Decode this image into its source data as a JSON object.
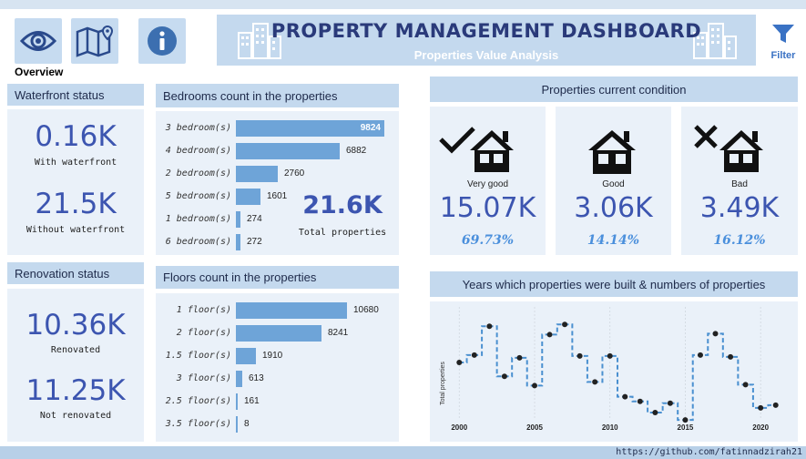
{
  "header": {
    "title": "PROPERTY MANAGEMENT DASHBOARD",
    "subtitle": "Properties Value Analysis",
    "overview_label": "Overview",
    "filter_label": "Filter"
  },
  "nav": [
    {
      "name": "eye-icon"
    },
    {
      "name": "map-icon"
    },
    {
      "name": "info-icon"
    }
  ],
  "waterfront": {
    "title": "Waterfront status",
    "with_value": "0.16K",
    "with_label": "With waterfront",
    "without_value": "21.5K",
    "without_label": "Without waterfront"
  },
  "renovation": {
    "title": "Renovation status",
    "renovated_value": "10.36K",
    "renovated_label": "Renovated",
    "not_value": "11.25K",
    "not_label": "Not renovated"
  },
  "bedrooms": {
    "title": "Bedrooms count in the properties",
    "total_value": "21.6K",
    "total_label": "Total properties",
    "items": [
      {
        "label": "3 bedroom(s)",
        "value": 9824
      },
      {
        "label": "4 bedroom(s)",
        "value": 6882
      },
      {
        "label": "2 bedroom(s)",
        "value": 2760
      },
      {
        "label": "5 bedroom(s)",
        "value": 1601
      },
      {
        "label": "1 bedroom(s)",
        "value": 274
      },
      {
        "label": "6 bedroom(s)",
        "value": 272
      }
    ]
  },
  "floors": {
    "title": "Floors count in the properties",
    "items": [
      {
        "label": "1 floor(s)",
        "value": 10680
      },
      {
        "label": "2 floor(s)",
        "value": 8241
      },
      {
        "label": "1.5 floor(s)",
        "value": 1910
      },
      {
        "label": "3 floor(s)",
        "value": 613
      },
      {
        "label": "2.5 floor(s)",
        "value": 161
      },
      {
        "label": "3.5 floor(s)",
        "value": 8
      }
    ]
  },
  "condition": {
    "title": "Properties current condition",
    "cards": [
      {
        "label": "Very good",
        "value": "15.07K",
        "pct": "69.73%",
        "icon": "house-check-icon"
      },
      {
        "label": "Good",
        "value": "3.06K",
        "pct": "14.14%",
        "icon": "house-icon"
      },
      {
        "label": "Bad",
        "value": "3.49K",
        "pct": "16.12%",
        "icon": "house-x-icon"
      }
    ]
  },
  "chart_data": {
    "type": "line",
    "title": "Years which properties were built & numbers of properties",
    "ylabel": "Total properties",
    "xlabel": "",
    "x_ticks": [
      2000,
      2005,
      2010,
      2015,
      2020
    ],
    "xlim": [
      1999.5,
      2021.5
    ],
    "ylim": [
      0,
      11
    ],
    "line_color": "#4a90d0",
    "x": [
      2000,
      2001,
      2002,
      2003,
      2004,
      2005,
      2006,
      2007,
      2008,
      2009,
      2010,
      2011,
      2012,
      2013,
      2014,
      2015,
      2016,
      2017,
      2018,
      2019,
      2020,
      2021
    ],
    "values": [
      5.6,
      6.4,
      9.5,
      4.1,
      6.1,
      3.1,
      8.6,
      9.7,
      6.3,
      3.5,
      6.3,
      1.9,
      1.4,
      0.2,
      1.2,
      -0.6,
      6.4,
      8.7,
      6.2,
      3.2,
      0.7,
      1.0
    ]
  }
}
